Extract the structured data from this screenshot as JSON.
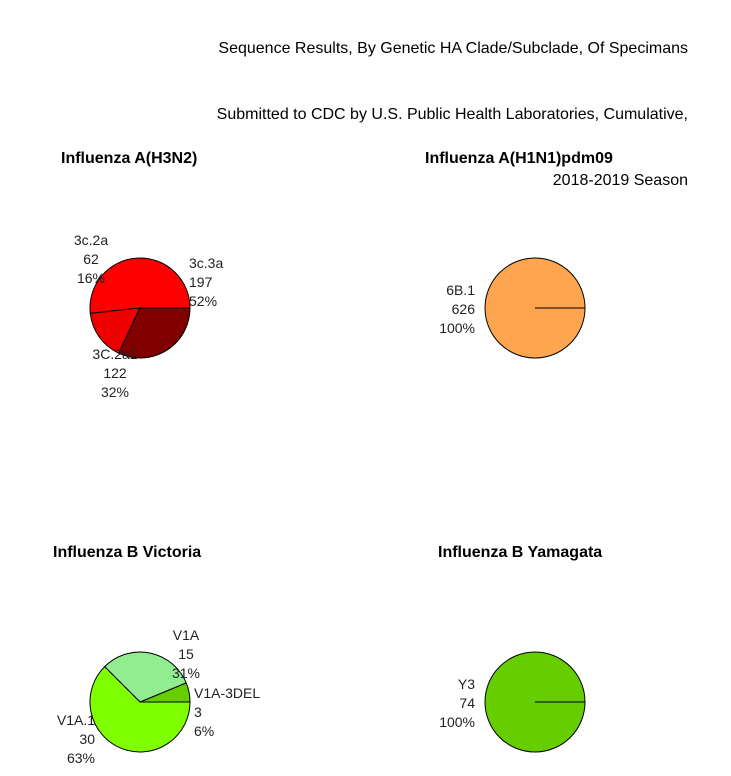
{
  "figure_title": [
    "Sequence Results, By Genetic HA Clade/Subclade, Of Specimans",
    "Submitted to CDC by U.S. Public Health Laboratories, Cumulative,",
    "2018-2019 Season"
  ],
  "chart_data": [
    {
      "type": "pie",
      "title": "Influenza A(H3N2)",
      "slices": [
        {
          "label": "3c.3a",
          "value": 197,
          "percent": "52%",
          "color": "#ff0000"
        },
        {
          "label": "3c.2a",
          "value": 62,
          "percent": "16%",
          "color": "#ee0000"
        },
        {
          "label": "3C.2a1",
          "value": 122,
          "percent": "32%",
          "color": "#800000"
        }
      ]
    },
    {
      "type": "pie",
      "title": "Influenza A(H1N1)pdm09",
      "slices": [
        {
          "label": "6B.1",
          "value": 626,
          "percent": "100%",
          "color": "#ffa54f"
        }
      ]
    },
    {
      "type": "pie",
      "title": "Influenza B Victoria",
      "slices": [
        {
          "label": "V1A-3DEL",
          "value": 3,
          "percent": "6%",
          "color": "#66cd00"
        },
        {
          "label": "V1A",
          "value": 15,
          "percent": "31%",
          "color": "#90ee90"
        },
        {
          "label": "V1A.1",
          "value": 30,
          "percent": "63%",
          "color": "#7fff00"
        }
      ]
    },
    {
      "type": "pie",
      "title": "Influenza B Yamagata",
      "slices": [
        {
          "label": "Y3",
          "value": 74,
          "percent": "100%",
          "color": "#66cd00"
        }
      ]
    }
  ]
}
